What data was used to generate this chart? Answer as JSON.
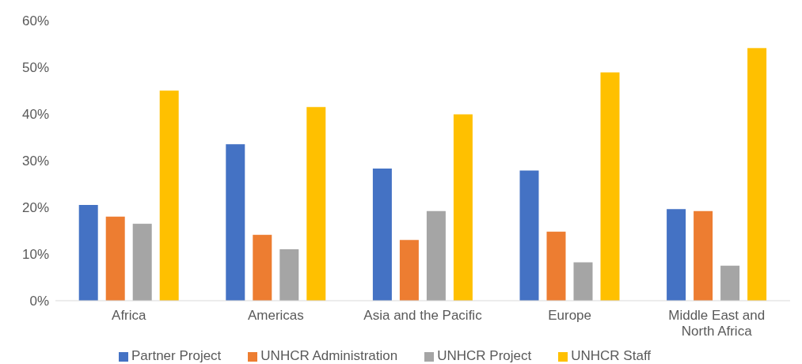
{
  "chart_data": {
    "type": "bar",
    "categories": [
      "Africa",
      "Americas",
      "Asia and the Pacific",
      "Europe",
      "Middle East and North Africa"
    ],
    "series": [
      {
        "name": "Partner Project",
        "color": "#4472c4",
        "values": [
          20.5,
          33.5,
          28.3,
          27.9,
          19.6
        ]
      },
      {
        "name": "UNHCR Administration",
        "color": "#ed7d31",
        "values": [
          18.0,
          14.1,
          13.0,
          14.8,
          19.2
        ]
      },
      {
        "name": "UNHCR Project",
        "color": "#a5a5a5",
        "values": [
          16.5,
          11.0,
          19.2,
          8.2,
          7.5
        ]
      },
      {
        "name": "UNHCR Staff",
        "color": "#ffc000",
        "values": [
          45.0,
          41.5,
          39.9,
          48.9,
          54.1
        ]
      }
    ],
    "ylim": [
      0,
      60
    ],
    "yticks": [
      {
        "value": 0,
        "label": "0%"
      },
      {
        "value": 10,
        "label": "10%"
      },
      {
        "value": 20,
        "label": "20%"
      },
      {
        "value": 30,
        "label": "30%"
      },
      {
        "value": 40,
        "label": "40%"
      },
      {
        "value": 50,
        "label": "50%"
      },
      {
        "value": 60,
        "label": "60%"
      }
    ],
    "grid": false,
    "legend": "bottom"
  }
}
